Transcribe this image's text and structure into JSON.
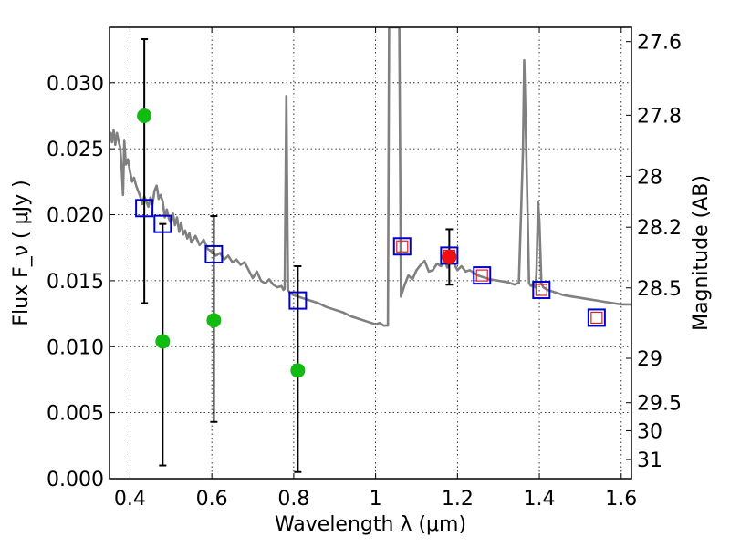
{
  "chart_data": {
    "type": "scatter",
    "xlabel": "Wavelength  λ (μm)",
    "ylabel": "Flux  F_ν  ( μJy )",
    "ylabel_right": "Magnitude (AB)",
    "xlim": [
      0.35,
      1.625
    ],
    "ylim": [
      0.0,
      0.0342
    ],
    "x_ticks": [
      {
        "value": 0.4,
        "label": "0.4"
      },
      {
        "value": 0.6,
        "label": "0.6"
      },
      {
        "value": 0.8,
        "label": "0.8"
      },
      {
        "value": 1.0,
        "label": "1"
      },
      {
        "value": 1.2,
        "label": "1.2"
      },
      {
        "value": 1.4,
        "label": "1.4"
      },
      {
        "value": 1.6,
        "label": "1.6"
      }
    ],
    "y_ticks": [
      {
        "value": 0.0,
        "label": "0.000"
      },
      {
        "value": 0.005,
        "label": "0.005"
      },
      {
        "value": 0.01,
        "label": "0.010"
      },
      {
        "value": 0.015,
        "label": "0.015"
      },
      {
        "value": 0.02,
        "label": "0.020"
      },
      {
        "value": 0.025,
        "label": "0.025"
      },
      {
        "value": 0.03,
        "label": "0.030"
      }
    ],
    "y2_ticks": [
      {
        "label": "27.6",
        "magnitude": 27.6
      },
      {
        "label": "27.8",
        "magnitude": 27.8
      },
      {
        "label": "28",
        "magnitude": 28.0
      },
      {
        "label": "28.2",
        "magnitude": 28.2
      },
      {
        "label": "28.5",
        "magnitude": 28.5
      },
      {
        "label": "29",
        "magnitude": 29.0
      },
      {
        "label": "29.5",
        "magnitude": 29.5
      },
      {
        "label": "30",
        "magnitude": 30.0
      },
      {
        "label": "31",
        "magnitude": 31.0
      }
    ],
    "grid": true,
    "grid_style": "dotted",
    "model_spectrum": {
      "color": "#808080",
      "points": [
        [
          0.35,
          0.0256
        ],
        [
          0.353,
          0.0262
        ],
        [
          0.356,
          0.0255
        ],
        [
          0.36,
          0.0264
        ],
        [
          0.364,
          0.0253
        ],
        [
          0.368,
          0.0262
        ],
        [
          0.372,
          0.0256
        ],
        [
          0.376,
          0.0251
        ],
        [
          0.38,
          0.0233
        ],
        [
          0.383,
          0.0215
        ],
        [
          0.386,
          0.0256
        ],
        [
          0.39,
          0.0238
        ],
        [
          0.395,
          0.0242
        ],
        [
          0.4,
          0.0233
        ],
        [
          0.405,
          0.0225
        ],
        [
          0.41,
          0.0228
        ],
        [
          0.415,
          0.0222
        ],
        [
          0.42,
          0.0218
        ],
        [
          0.425,
          0.0214
        ],
        [
          0.43,
          0.0208
        ],
        [
          0.435,
          0.0214
        ],
        [
          0.44,
          0.021
        ],
        [
          0.445,
          0.0206
        ],
        [
          0.45,
          0.0213
        ],
        [
          0.455,
          0.0208
        ],
        [
          0.46,
          0.0218
        ],
        [
          0.465,
          0.0222
        ],
        [
          0.468,
          0.0217
        ],
        [
          0.47,
          0.0212
        ],
        [
          0.475,
          0.0215
        ],
        [
          0.48,
          0.021
        ],
        [
          0.485,
          0.0198
        ],
        [
          0.49,
          0.0204
        ],
        [
          0.495,
          0.0197
        ],
        [
          0.5,
          0.0194
        ],
        [
          0.505,
          0.0201
        ],
        [
          0.51,
          0.0192
        ],
        [
          0.515,
          0.0198
        ],
        [
          0.52,
          0.0187
        ],
        [
          0.525,
          0.0194
        ],
        [
          0.53,
          0.0185
        ],
        [
          0.535,
          0.0188
        ],
        [
          0.54,
          0.0182
        ],
        [
          0.545,
          0.0186
        ],
        [
          0.55,
          0.0179
        ],
        [
          0.56,
          0.0184
        ],
        [
          0.57,
          0.0177
        ],
        [
          0.58,
          0.0181
        ],
        [
          0.59,
          0.0174
        ],
        [
          0.6,
          0.0172
        ],
        [
          0.61,
          0.0169
        ],
        [
          0.62,
          0.0171
        ],
        [
          0.63,
          0.0166
        ],
        [
          0.64,
          0.0169
        ],
        [
          0.65,
          0.0164
        ],
        [
          0.66,
          0.0166
        ],
        [
          0.67,
          0.0162
        ],
        [
          0.68,
          0.0164
        ],
        [
          0.69,
          0.0158
        ],
        [
          0.7,
          0.0152
        ],
        [
          0.71,
          0.0157
        ],
        [
          0.72,
          0.015
        ],
        [
          0.73,
          0.0148
        ],
        [
          0.74,
          0.0151
        ],
        [
          0.75,
          0.0147
        ],
        [
          0.76,
          0.0145
        ],
        [
          0.77,
          0.0146
        ],
        [
          0.775,
          0.0143
        ],
        [
          0.778,
          0.0144
        ],
        [
          0.782,
          0.029
        ],
        [
          0.786,
          0.0143
        ],
        [
          0.79,
          0.0141
        ],
        [
          0.8,
          0.0139
        ],
        [
          0.81,
          0.0138
        ],
        [
          0.82,
          0.0137
        ],
        [
          0.83,
          0.0136
        ],
        [
          0.84,
          0.0135
        ],
        [
          0.86,
          0.0133
        ],
        [
          0.88,
          0.013
        ],
        [
          0.9,
          0.0128
        ],
        [
          0.92,
          0.0126
        ],
        [
          0.94,
          0.0123
        ],
        [
          0.96,
          0.0121
        ],
        [
          0.98,
          0.0119
        ],
        [
          1.0,
          0.0117
        ],
        [
          1.01,
          0.0118
        ],
        [
          1.02,
          0.0116
        ],
        [
          1.03,
          0.0116
        ],
        [
          1.033,
          0.0342
        ],
        [
          1.04,
          0.0342
        ],
        [
          1.05,
          0.0342
        ],
        [
          1.058,
          0.0342
        ],
        [
          1.062,
          0.0138
        ],
        [
          1.07,
          0.0146
        ],
        [
          1.08,
          0.0154
        ],
        [
          1.09,
          0.0151
        ],
        [
          1.1,
          0.0158
        ],
        [
          1.11,
          0.0162
        ],
        [
          1.12,
          0.0165
        ],
        [
          1.13,
          0.0157
        ],
        [
          1.14,
          0.0158
        ],
        [
          1.15,
          0.0163
        ],
        [
          1.16,
          0.0161
        ],
        [
          1.17,
          0.0165
        ],
        [
          1.175,
          0.016
        ],
        [
          1.18,
          0.0163
        ],
        [
          1.185,
          0.0166
        ],
        [
          1.19,
          0.0164
        ],
        [
          1.2,
          0.0158
        ],
        [
          1.21,
          0.0161
        ],
        [
          1.22,
          0.0157
        ],
        [
          1.23,
          0.0158
        ],
        [
          1.24,
          0.0156
        ],
        [
          1.25,
          0.0154
        ],
        [
          1.26,
          0.0153
        ],
        [
          1.28,
          0.0151
        ],
        [
          1.3,
          0.015
        ],
        [
          1.32,
          0.0149
        ],
        [
          1.34,
          0.0147
        ],
        [
          1.345,
          0.0148
        ],
        [
          1.35,
          0.0148
        ],
        [
          1.36,
          0.0248
        ],
        [
          1.363,
          0.0317
        ],
        [
          1.368,
          0.025
        ],
        [
          1.375,
          0.0148
        ],
        [
          1.38,
          0.0146
        ],
        [
          1.385,
          0.0148
        ],
        [
          1.39,
          0.0145
        ],
        [
          1.393,
          0.0155
        ],
        [
          1.397,
          0.021
        ],
        [
          1.4,
          0.0195
        ],
        [
          1.405,
          0.0148
        ],
        [
          1.41,
          0.0145
        ],
        [
          1.42,
          0.0143
        ],
        [
          1.44,
          0.0141
        ],
        [
          1.46,
          0.0139
        ],
        [
          1.48,
          0.0138
        ],
        [
          1.5,
          0.0137
        ],
        [
          1.52,
          0.0136
        ],
        [
          1.54,
          0.0135
        ],
        [
          1.56,
          0.0134
        ],
        [
          1.58,
          0.0133
        ],
        [
          1.6,
          0.0132
        ],
        [
          1.625,
          0.0132
        ]
      ]
    },
    "series": [
      {
        "marker": "square-open",
        "color": "#0000cc",
        "points": [
          {
            "x": 0.435,
            "y": 0.0205
          },
          {
            "x": 0.48,
            "y": 0.0193
          },
          {
            "x": 0.605,
            "y": 0.017
          },
          {
            "x": 0.81,
            "y": 0.0135
          },
          {
            "x": 1.065,
            "y": 0.0176
          },
          {
            "x": 1.18,
            "y": 0.0169
          },
          {
            "x": 1.26,
            "y": 0.0154
          },
          {
            "x": 1.405,
            "y": 0.0143
          },
          {
            "x": 1.54,
            "y": 0.0122
          }
        ]
      },
      {
        "marker": "square-open-small",
        "color": "#e02020",
        "points": [
          {
            "x": 1.065,
            "y": 0.0176
          },
          {
            "x": 1.18,
            "y": 0.0169
          },
          {
            "x": 1.26,
            "y": 0.0154
          },
          {
            "x": 1.405,
            "y": 0.0143
          },
          {
            "x": 1.54,
            "y": 0.0122
          }
        ]
      },
      {
        "marker": "circle",
        "color": "#11bb11",
        "points": [
          {
            "x": 0.435,
            "y": 0.0275,
            "err_low": 0.0133,
            "err_high": 0.0333
          },
          {
            "x": 0.48,
            "y": 0.0104,
            "err_low": 0.001,
            "err_high": 0.0193
          },
          {
            "x": 0.605,
            "y": 0.012,
            "err_low": 0.0043,
            "err_high": 0.0199
          },
          {
            "x": 0.81,
            "y": 0.0082,
            "err_low": 0.0005,
            "err_high": 0.0161
          }
        ]
      },
      {
        "marker": "circle",
        "color": "#ee1111",
        "points": [
          {
            "x": 1.18,
            "y": 0.0168,
            "err_low": 0.0147,
            "err_high": 0.0189
          }
        ]
      }
    ]
  }
}
